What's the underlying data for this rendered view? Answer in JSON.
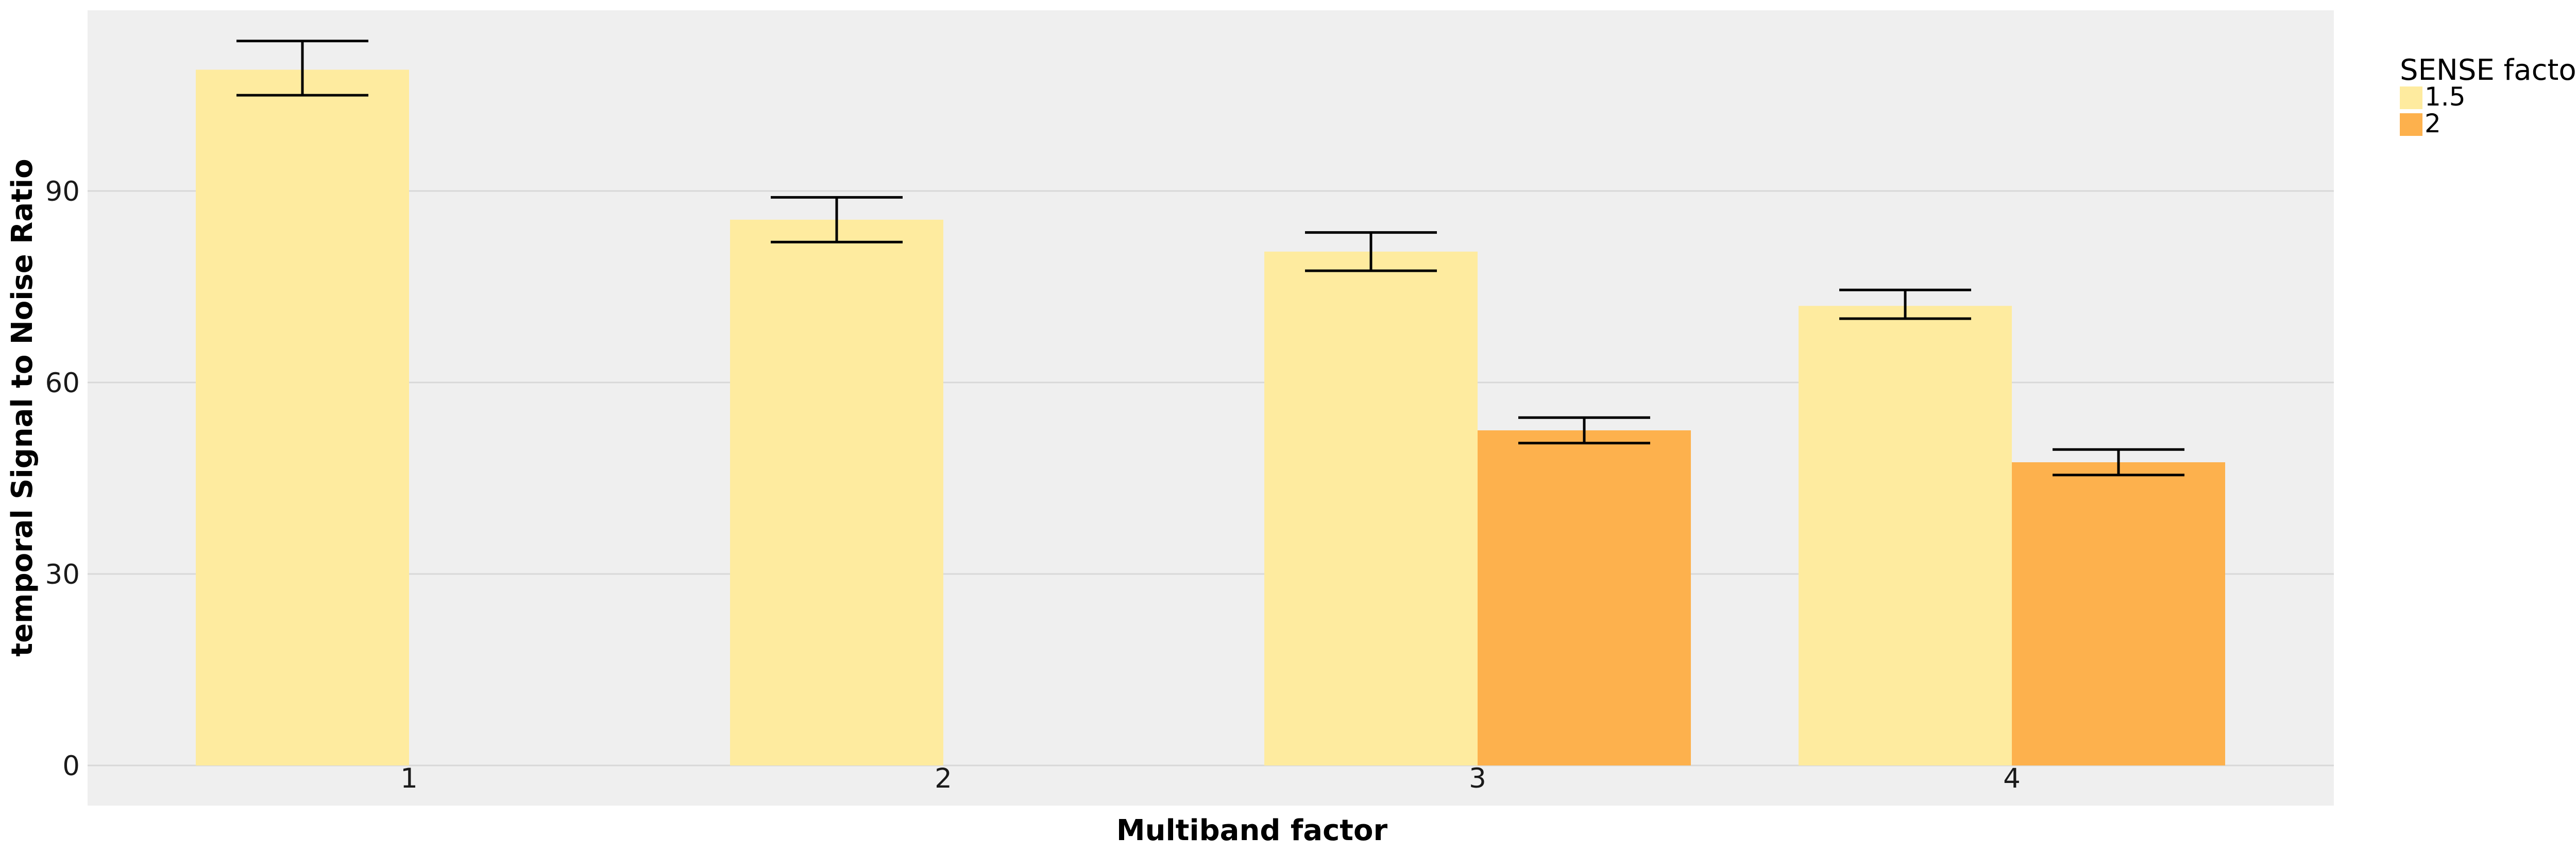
{
  "chart_data": {
    "type": "bar",
    "xlabel": "Multiband factor",
    "ylabel": "temporal Signal to Noise Ratio",
    "categories": [
      "1",
      "2",
      "3",
      "4"
    ],
    "ylim": [
      0,
      118
    ],
    "yticks": [
      0,
      30,
      60,
      90
    ],
    "grid": "horizontal",
    "legend": {
      "title": "SENSE factor",
      "placement": "right"
    },
    "series": [
      {
        "name": "1.5",
        "color": "#FEEB9F",
        "values": [
          109,
          85.5,
          80.5,
          72
        ],
        "error_low": [
          105,
          82,
          77.5,
          70
        ],
        "error_high": [
          113.5,
          89,
          83.5,
          74.5
        ]
      },
      {
        "name": "2",
        "color": "#FDB14D",
        "values": [
          null,
          null,
          52.5,
          47.5
        ],
        "error_low": [
          null,
          null,
          50.5,
          45.5
        ],
        "error_high": [
          null,
          null,
          54.5,
          49.5
        ]
      }
    ],
    "background": "#EFEFEF",
    "gridline_color": "#D8D8D8"
  }
}
